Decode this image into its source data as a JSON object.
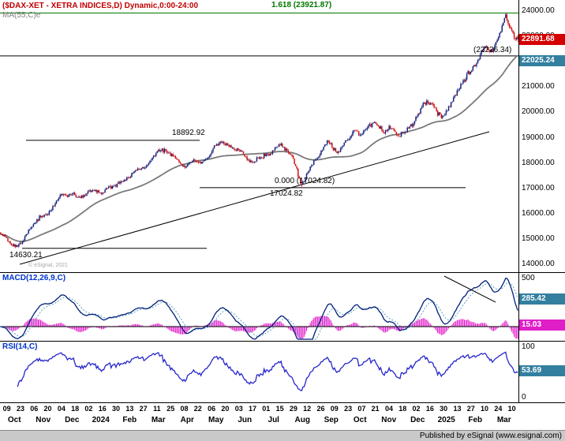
{
  "header": {
    "title": "($DAX-XET - XETRA INDICES,D) Dynamic,0:00-24:00",
    "ma_label": "MA(55,C)e",
    "copyright": "© eSignal, 2021"
  },
  "price_panel": {
    "axis_ticks": [
      "24000.00",
      "23000.00",
      "22000.00",
      "21000.00",
      "20000.00",
      "19000.00",
      "18000.00",
      "17000.00",
      "16000.00",
      "15000.00",
      "14000.00"
    ],
    "last_price_badge": "22891.68",
    "ma_badge": "22025.24",
    "hline_label": "(22226.34)",
    "resistance_label": "18892.92",
    "support_label": "14630.21",
    "fib_extension_label": "1.618 (23921.87)",
    "fib_zero_label": "0.000 (17024.82)",
    "fib_zero_price": "17024.82"
  },
  "macd_panel": {
    "label": "MACD(12,26,9,C)",
    "axis_ticks": [
      "500",
      "0"
    ],
    "macd_badge": "285.42",
    "hist_badge": "15.03"
  },
  "rsi_panel": {
    "label": "RSI(14,C)",
    "axis_ticks": [
      "100",
      "50",
      "0"
    ],
    "badge": "53.69"
  },
  "x_axis": {
    "days": [
      "09",
      "23",
      "06",
      "20",
      "04",
      "18",
      "02",
      "16",
      "30",
      "13",
      "27",
      "11",
      "25",
      "08",
      "22",
      "06",
      "20",
      "03",
      "17",
      "01",
      "15",
      "29",
      "12",
      "26",
      "09",
      "23",
      "07",
      "21",
      "04",
      "18",
      "02",
      "16",
      "30",
      "13",
      "27",
      "10",
      "24",
      "10"
    ],
    "months": [
      "Oct",
      "Nov",
      "Dec",
      "2024",
      "Feb",
      "Mar",
      "Apr",
      "May",
      "Jun",
      "Jul",
      "Aug",
      "Sep",
      "Oct",
      "Nov",
      "Dec",
      "2025",
      "Feb",
      "Mar"
    ]
  },
  "footer": {
    "publisher": "Published by eSignal (www.esignal.com)"
  },
  "colors": {
    "up_candle": "#16247e",
    "down_candle": "#cc1414",
    "ma_line": "#7a7a7a",
    "macd_line": "#001f7a",
    "signal_line": "#5b9fbf",
    "histogram": "#e31ccc",
    "rsi_line": "#2626cc",
    "badge_red": "#d40000",
    "badge_teal": "#337fa0",
    "badge_magenta": "#e01ec8",
    "title_red": "#c00000",
    "fib_green": "#007700",
    "study_label_blue": "#0033cc"
  },
  "chart_data": {
    "type": "candlestick",
    "symbol": "$DAX-XET",
    "description": "XETRA INDICES",
    "interval": "D",
    "session": "0:00-24:00",
    "y_range": [
      14000,
      24000
    ],
    "last_close": 22891.68,
    "ma55_last": 22025.24,
    "levels": {
      "fib_0": 17024.82,
      "fib_1618": 23921.87,
      "hline": 22226.34,
      "resistance": 18892.92,
      "support": 14630.21
    },
    "num_bars": 427,
    "price_keypoints": [
      [
        0,
        15250
      ],
      [
        6,
        14950
      ],
      [
        12,
        14680
      ],
      [
        18,
        14900
      ],
      [
        25,
        15450
      ],
      [
        32,
        15850
      ],
      [
        40,
        16050
      ],
      [
        46,
        16500
      ],
      [
        50,
        16800
      ],
      [
        55,
        16700
      ],
      [
        60,
        16780
      ],
      [
        64,
        16600
      ],
      [
        70,
        16750
      ],
      [
        76,
        16950
      ],
      [
        82,
        16820
      ],
      [
        88,
        16980
      ],
      [
        94,
        17080
      ],
      [
        100,
        17300
      ],
      [
        106,
        17480
      ],
      [
        112,
        17720
      ],
      [
        118,
        17850
      ],
      [
        124,
        18100
      ],
      [
        130,
        18480
      ],
      [
        136,
        18480
      ],
      [
        141,
        18320
      ],
      [
        146,
        18050
      ],
      [
        150,
        17790
      ],
      [
        155,
        17980
      ],
      [
        160,
        18120
      ],
      [
        165,
        17990
      ],
      [
        170,
        18190
      ],
      [
        176,
        18650
      ],
      [
        182,
        18850
      ],
      [
        187,
        18680
      ],
      [
        192,
        18580
      ],
      [
        197,
        18480
      ],
      [
        202,
        18230
      ],
      [
        207,
        18050
      ],
      [
        212,
        18180
      ],
      [
        217,
        18290
      ],
      [
        222,
        18380
      ],
      [
        227,
        18600
      ],
      [
        231,
        18720
      ],
      [
        235,
        18480
      ],
      [
        239,
        18320
      ],
      [
        243,
        17900
      ],
      [
        246,
        17350
      ],
      [
        248,
        17100
      ],
      [
        251,
        17450
      ],
      [
        255,
        17780
      ],
      [
        259,
        18150
      ],
      [
        263,
        18350
      ],
      [
        267,
        18750
      ],
      [
        270,
        18880
      ],
      [
        274,
        18550
      ],
      [
        278,
        18400
      ],
      [
        283,
        18800
      ],
      [
        288,
        19000
      ],
      [
        292,
        19300
      ],
      [
        296,
        19100
      ],
      [
        300,
        19250
      ],
      [
        304,
        19480
      ],
      [
        308,
        19550
      ],
      [
        312,
        19420
      ],
      [
        316,
        19220
      ],
      [
        320,
        19380
      ],
      [
        324,
        19250
      ],
      [
        328,
        19060
      ],
      [
        332,
        19220
      ],
      [
        336,
        19350
      ],
      [
        340,
        19580
      ],
      [
        344,
        19950
      ],
      [
        348,
        20300
      ],
      [
        352,
        20420
      ],
      [
        356,
        20280
      ],
      [
        360,
        19950
      ],
      [
        364,
        19820
      ],
      [
        368,
        20050
      ],
      [
        372,
        20480
      ],
      [
        376,
        20800
      ],
      [
        380,
        21100
      ],
      [
        384,
        21480
      ],
      [
        388,
        21720
      ],
      [
        392,
        21950
      ],
      [
        396,
        22400
      ],
      [
        400,
        22560
      ],
      [
        403,
        22380
      ],
      [
        406,
        22550
      ],
      [
        409,
        22850
      ],
      [
        412,
        23250
      ],
      [
        414,
        23600
      ],
      [
        416,
        23880
      ],
      [
        418,
        23550
      ],
      [
        420,
        23250
      ],
      [
        422,
        23050
      ],
      [
        424,
        22980
      ],
      [
        426,
        22891.68
      ]
    ],
    "anchors": [
      {
        "i": 12,
        "low": 14630.21
      },
      {
        "i": 182,
        "high": 18892.92
      },
      {
        "i": 248,
        "low": 17024.82
      },
      {
        "i": 416,
        "high": 23921.87
      },
      {
        "i": 426,
        "open": 23020,
        "high": 23080,
        "close": 22891.68
      }
    ],
    "indicators": {
      "macd": {
        "params": [
          12,
          26,
          9
        ],
        "last": 285.42,
        "hist_last": 15.03,
        "axis_ticks": [
          500,
          0
        ]
      },
      "rsi": {
        "params": [
          14
        ],
        "last": 53.69,
        "axis_ticks": [
          100,
          50,
          0
        ]
      }
    }
  }
}
